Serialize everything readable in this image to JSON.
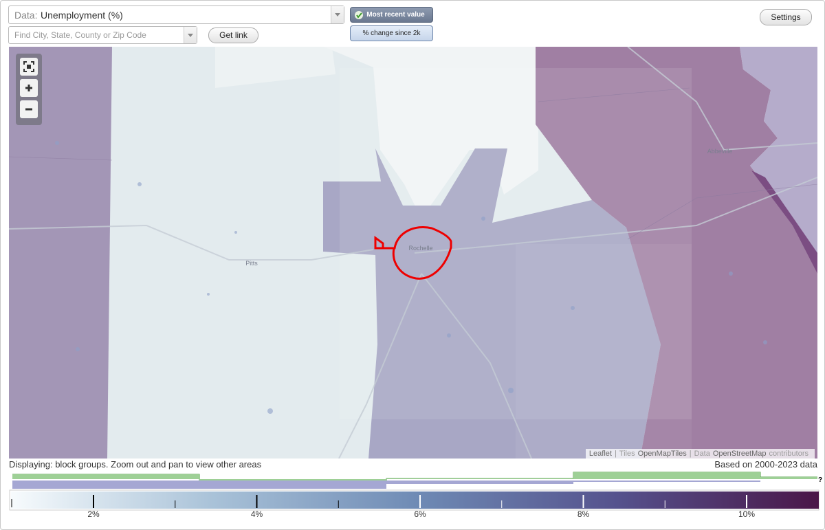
{
  "controls": {
    "data_label": "Data:",
    "data_value": "Unemployment (%)",
    "search_placeholder": "Find City, State, County or Zip Code",
    "get_link": "Get link",
    "most_recent": "Most recent value",
    "pct_change": "% change since 2k",
    "settings": "Settings"
  },
  "map": {
    "places": [
      "Abbeville",
      "Rochelle",
      "Pitts"
    ],
    "attribution": [
      "Leaflet",
      "|",
      "Tiles",
      "OpenMapTiles",
      "|",
      "Data",
      "OpenStreetMap",
      "contributors"
    ]
  },
  "footer": {
    "displaying": "Displaying: block groups. Zoom out and pan to view other areas",
    "based_on": "Based on 2000-2023 data"
  },
  "legend": {
    "labels": [
      "2%",
      "4%",
      "6%",
      "8%",
      "10%"
    ],
    "help": "?"
  }
}
